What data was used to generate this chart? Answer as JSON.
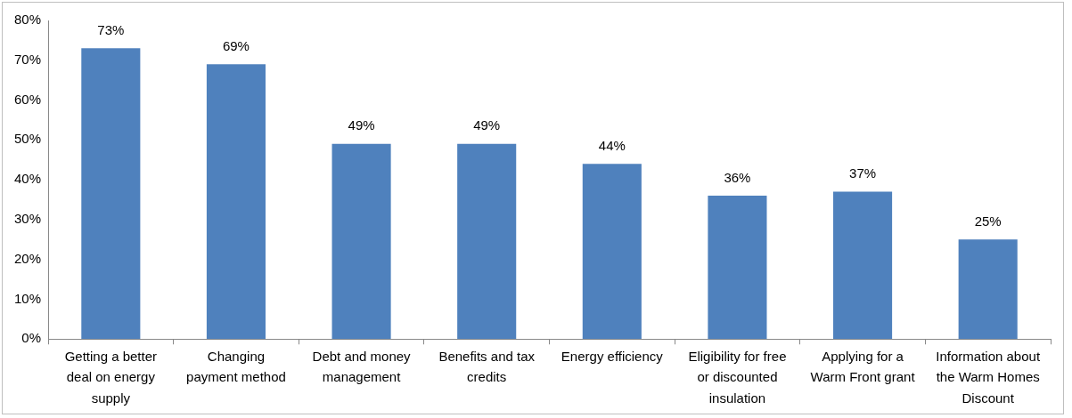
{
  "chart_data": {
    "type": "bar",
    "categories": [
      "Getting a better deal on energy supply",
      "Changing payment method",
      "Debt and money management",
      "Benefits and tax credits",
      "Energy efficiency",
      "Eligibility for free or discounted insulation",
      "Applying for a Warm Front grant",
      "Information about the Warm Homes Discount"
    ],
    "values": [
      73,
      69,
      49,
      49,
      44,
      36,
      37,
      25
    ],
    "value_labels": [
      "73%",
      "69%",
      "49%",
      "49%",
      "44%",
      "36%",
      "37%",
      "25%"
    ],
    "color": "#4f81bd",
    "ylim": [
      0,
      80
    ],
    "yticks": [
      {
        "value": 0,
        "label": "0%"
      },
      {
        "value": 10,
        "label": "10%"
      },
      {
        "value": 20,
        "label": "20%"
      },
      {
        "value": 30,
        "label": "30%"
      },
      {
        "value": 40,
        "label": "40%"
      },
      {
        "value": 50,
        "label": "50%"
      },
      {
        "value": 60,
        "label": "60%"
      },
      {
        "value": 70,
        "label": "70%"
      },
      {
        "value": 80,
        "label": "80%"
      }
    ]
  }
}
